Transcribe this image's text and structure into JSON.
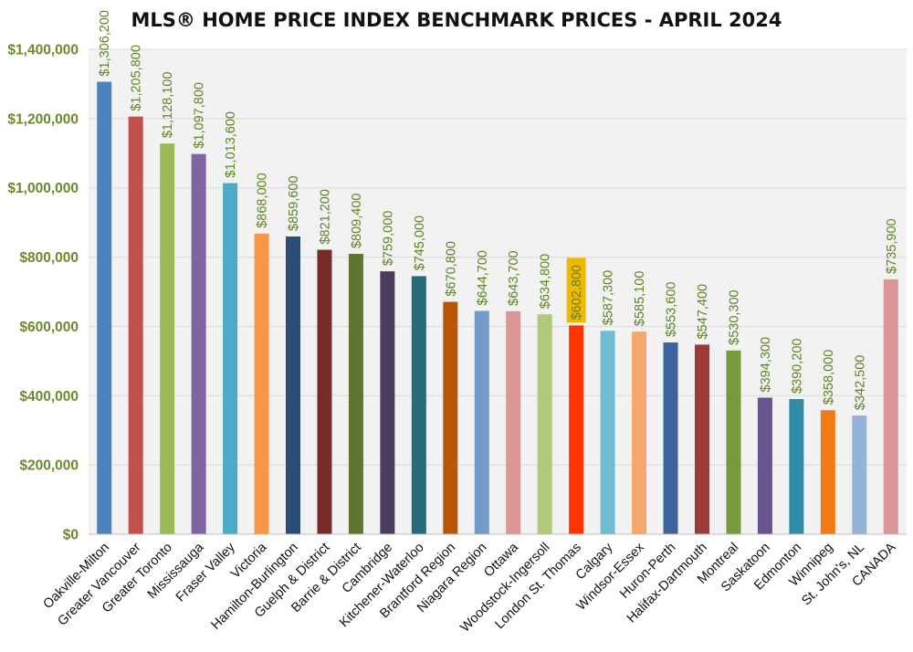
{
  "chart_data": {
    "type": "bar",
    "title": "MLS® HOME PRICE INDEX BENCHMARK PRICES - APRIL 2024",
    "xlabel": "",
    "ylabel": "",
    "ylim": [
      0,
      1400000
    ],
    "yticks": [
      0,
      200000,
      400000,
      600000,
      800000,
      1000000,
      1200000,
      1400000
    ],
    "ytick_labels": [
      "$0",
      "$200,000",
      "$400,000",
      "$600,000",
      "$800,000",
      "$1,000,000",
      "$1,200,000",
      "$1,400,000"
    ],
    "grid": true,
    "categories": [
      "Oakville-Milton",
      "Greater Vancouver",
      "Greater Toronto",
      "Mississauga",
      "Fraser Valley",
      "Victoria",
      "Hamilton-Burlington",
      "Guelph & District",
      "Barrie & District",
      "Cambridge",
      "Kitchener-Waterloo",
      "Brantford Region",
      "Niagara Region",
      "Ottawa",
      "Woodstock-Ingersoll",
      "London St. Thomas",
      "Calgary",
      "Windsor-Essex",
      "Huron-Perth",
      "Halifax-Dartmouth",
      "Montreal",
      "Saskatoon",
      "Edmonton",
      "Winnipeg",
      "St. John's, NL",
      "CANADA"
    ],
    "values": [
      1306200,
      1205800,
      1128100,
      1097800,
      1013600,
      868000,
      859600,
      821200,
      809400,
      759000,
      745000,
      670800,
      644700,
      643700,
      634800,
      602800,
      587300,
      585100,
      553600,
      547400,
      530300,
      394300,
      390200,
      358000,
      342500,
      735900
    ],
    "data_labels": [
      "$1,306,200",
      "$1,205,800",
      "$1,128,100",
      "$1,097,800",
      "$1,013,600",
      "$868,000",
      "$859,600",
      "$821,200",
      "$809,400",
      "$759,000",
      "$745,000",
      "$670,800",
      "$644,700",
      "$643,700",
      "$634,800",
      "$602,800",
      "$587,300",
      "$585,100",
      "$553,600",
      "$547,400",
      "$530,300",
      "$394,300",
      "$390,200",
      "$358,000",
      "$342,500",
      "$735,900"
    ],
    "colors": [
      "#4f81bd",
      "#c0504d",
      "#9bbb59",
      "#8064a2",
      "#4bacc6",
      "#f79646",
      "#2c4d75",
      "#772c2a",
      "#5f7530",
      "#4d3b62",
      "#276a7c",
      "#b65708",
      "#729aca",
      "#d99694",
      "#b0ca7c",
      "#ff3300",
      "#6fbcd3",
      "#f6a86c",
      "#3c65a0",
      "#9b3b3a",
      "#77983c",
      "#68548e",
      "#2f8ea6",
      "#f27a15",
      "#95b3d7",
      "#d99694"
    ],
    "highlight_index": 15,
    "highlight_color": "#f2b800"
  }
}
